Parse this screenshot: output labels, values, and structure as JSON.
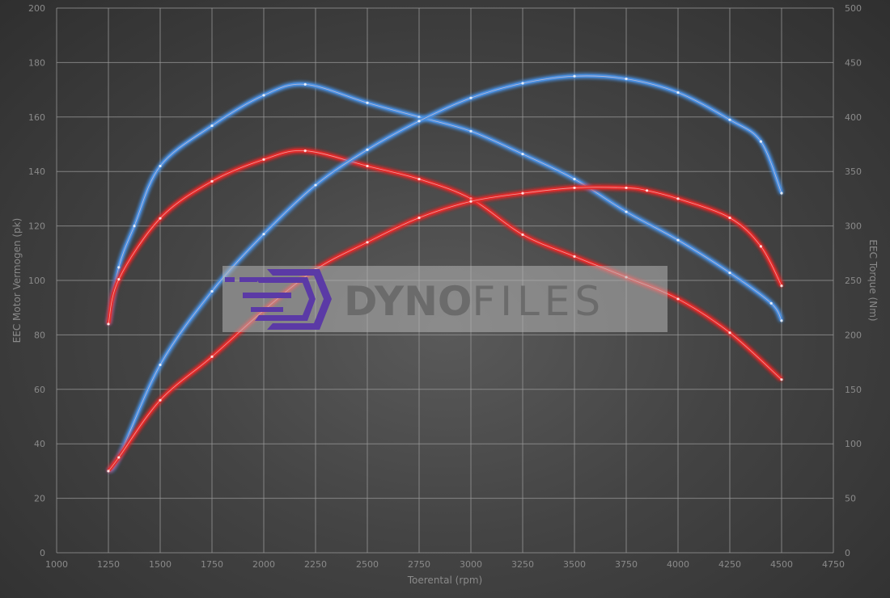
{
  "chart_data": {
    "type": "line",
    "xlabel": "Toerental (rpm)",
    "ylabel_left": "EEC Motor Vermogen (pk)",
    "ylabel_right": "EEC Torque (Nm)",
    "xlim": [
      1000,
      4750
    ],
    "ylim_left": [
      0,
      200
    ],
    "ylim_right": [
      0,
      500
    ],
    "x_ticks": [
      1000,
      1250,
      1500,
      1750,
      2000,
      2250,
      2500,
      2750,
      3000,
      3250,
      3500,
      3750,
      4000,
      4250,
      4500,
      4750
    ],
    "y_left_ticks": [
      0,
      20,
      40,
      60,
      80,
      100,
      120,
      140,
      160,
      180,
      200
    ],
    "y_right_ticks": [
      0,
      50,
      100,
      150,
      200,
      250,
      300,
      350,
      400,
      450,
      500
    ],
    "grid": true,
    "watermark": "DynoFiles",
    "series": [
      {
        "axis": "right",
        "color": "#4a90e2",
        "x": [
          1250,
          1300,
          1375,
          1500,
          1750,
          2000,
          2200,
          2500,
          2750,
          3000,
          3250,
          3500,
          3750,
          4000,
          4250,
          4450,
          4500
        ],
        "values": [
          210,
          262,
          300,
          355,
          392,
          420,
          430,
          413,
          400,
          387,
          366,
          343,
          313,
          287,
          257,
          229,
          213
        ]
      },
      {
        "axis": "right",
        "color": "#e52a2a",
        "x": [
          1250,
          1300,
          1500,
          1750,
          2000,
          2200,
          2500,
          2750,
          3000,
          3250,
          3500,
          3750,
          4000,
          4250,
          4500
        ],
        "values": [
          210,
          251,
          307,
          341,
          361,
          369,
          355,
          343,
          325,
          292,
          272,
          253,
          233,
          202,
          159
        ]
      },
      {
        "axis": "left",
        "color": "#4a90e2",
        "x": [
          1250,
          1300,
          1500,
          1750,
          2000,
          2250,
          2500,
          2750,
          3000,
          3250,
          3500,
          3750,
          4000,
          4250,
          4400,
          4500
        ],
        "values": [
          30,
          35,
          69,
          96,
          117,
          135,
          148,
          158.5,
          167,
          172.4,
          175,
          174,
          169,
          159,
          151,
          132
        ]
      },
      {
        "axis": "left",
        "color": "#e52a2a",
        "x": [
          1250,
          1300,
          1500,
          1750,
          2000,
          2250,
          2500,
          2750,
          3000,
          3250,
          3500,
          3750,
          3850,
          4000,
          4250,
          4400,
          4500
        ],
        "values": [
          30,
          35,
          56,
          72,
          89,
          104,
          114,
          123,
          129,
          132,
          134,
          134,
          133,
          130,
          123,
          112.5,
          98
        ]
      }
    ]
  }
}
